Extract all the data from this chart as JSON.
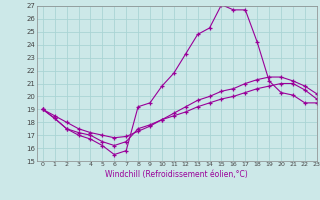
{
  "xlabel": "Windchill (Refroidissement éolien,°C)",
  "bg_color": "#cce8e8",
  "grid_color": "#aad4d4",
  "line_color": "#990099",
  "spine_color": "#888888",
  "tick_color": "#444444",
  "xmin": -0.5,
  "xmax": 23,
  "ymin": 15,
  "ymax": 27,
  "yticks": [
    15,
    16,
    17,
    18,
    19,
    20,
    21,
    22,
    23,
    24,
    25,
    26,
    27
  ],
  "xticks": [
    0,
    1,
    2,
    3,
    4,
    5,
    6,
    7,
    8,
    9,
    10,
    11,
    12,
    13,
    14,
    15,
    16,
    17,
    18,
    19,
    20,
    21,
    22,
    23
  ],
  "series": {
    "top": {
      "x": [
        0,
        1,
        2,
        3,
        4,
        5,
        6,
        7,
        8,
        9,
        10,
        11,
        12,
        13,
        14,
        15,
        16,
        17,
        18,
        19,
        20,
        21,
        22,
        23
      ],
      "y": [
        19.0,
        18.3,
        17.5,
        17.0,
        16.7,
        16.2,
        15.5,
        15.8,
        19.2,
        19.5,
        20.8,
        21.8,
        23.3,
        24.8,
        25.3,
        27.1,
        26.7,
        26.7,
        24.2,
        21.2,
        20.3,
        20.1,
        19.5,
        19.5
      ]
    },
    "bot": {
      "x": [
        0,
        1,
        2,
        3,
        4,
        5,
        6,
        7,
        8,
        9,
        10,
        11,
        12,
        13,
        14,
        15,
        16,
        17,
        18,
        19,
        20,
        21,
        22,
        23
      ],
      "y": [
        19.0,
        18.3,
        17.5,
        17.2,
        17.0,
        16.5,
        16.2,
        16.5,
        17.5,
        17.8,
        18.2,
        18.5,
        18.8,
        19.2,
        19.5,
        19.8,
        20.0,
        20.3,
        20.6,
        20.8,
        21.0,
        21.0,
        20.5,
        19.8
      ]
    },
    "mid": {
      "x": [
        0,
        1,
        2,
        3,
        4,
        5,
        6,
        7,
        8,
        9,
        10,
        11,
        12,
        13,
        14,
        15,
        16,
        17,
        18,
        19,
        20,
        21,
        22,
        23
      ],
      "y": [
        19.0,
        18.5,
        18.0,
        17.5,
        17.2,
        17.0,
        16.8,
        16.9,
        17.3,
        17.7,
        18.2,
        18.7,
        19.2,
        19.7,
        20.0,
        20.4,
        20.6,
        21.0,
        21.3,
        21.5,
        21.5,
        21.2,
        20.8,
        20.2
      ]
    }
  }
}
